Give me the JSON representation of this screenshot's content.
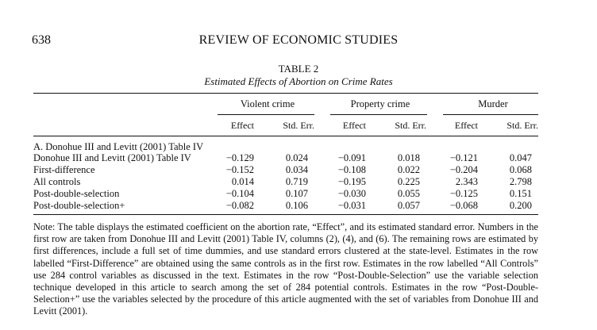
{
  "header": {
    "page_number": "638",
    "journal_title": "REVIEW OF ECONOMIC STUDIES"
  },
  "table": {
    "label": "TABLE 2",
    "caption": "Estimated Effects of Abortion on Crime Rates",
    "groups": [
      "Violent crime",
      "Property crime",
      "Murder"
    ],
    "subheaders": [
      "Effect",
      "Std. Err."
    ],
    "section_header": "A. Donohue III and Levitt (2001) Table IV",
    "rows": [
      {
        "label": "Donohue III and Levitt (2001) Table IV",
        "values": [
          "−0.129",
          "0.024",
          "−0.091",
          "0.018",
          "−0.121",
          "0.047"
        ]
      },
      {
        "label": "First-difference",
        "values": [
          "−0.152",
          "0.034",
          "−0.108",
          "0.022",
          "−0.204",
          "0.068"
        ]
      },
      {
        "label": "All controls",
        "values": [
          "0.014",
          "0.719",
          "−0.195",
          "0.225",
          "2.343",
          "2.798"
        ]
      },
      {
        "label": "Post-double-selection",
        "values": [
          "−0.104",
          "0.107",
          "−0.030",
          "0.055",
          "−0.125",
          "0.151"
        ]
      },
      {
        "label": "Post-double-selection+",
        "values": [
          "−0.082",
          "0.106",
          "−0.031",
          "0.057",
          "−0.068",
          "0.200"
        ]
      }
    ]
  },
  "note": "Note: The table displays the estimated coefficient on the abortion rate, “Effect”, and its estimated standard error. Numbers in the first row are taken from Donohue III and Levitt (2001) Table IV, columns (2), (4), and (6). The remaining rows are estimated by first differences, include a full set of time dummies, and use standard errors clustered at the state-level. Estimates in the row labelled “First-Difference” are obtained using the same controls as in the first row. Estimates in the row labelled “All Controls” use 284 control variables as discussed in the text. Estimates in the row “Post-Double-Selection” use the variable selection technique developed in this article to search among the set of 284 potential controls. Estimates in the row “Post-Double-Selection+” use the variables selected by the procedure of this article augmented with the set of variables from Donohue III and Levitt (2001)."
}
